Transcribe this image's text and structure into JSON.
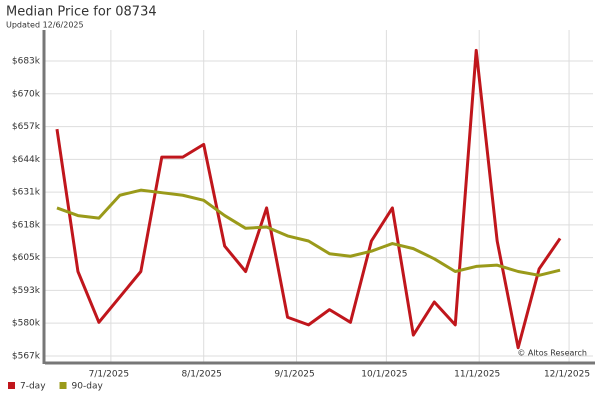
{
  "chart_data": {
    "type": "line",
    "title": "Median Price for 08734",
    "subtitle": "Updated 12/6/2025",
    "annotation": "© Altos Research",
    "x": [
      "2025-06-13",
      "2025-06-20",
      "2025-06-27",
      "2025-07-04",
      "2025-07-11",
      "2025-07-18",
      "2025-07-25",
      "2025-08-01",
      "2025-08-08",
      "2025-08-15",
      "2025-08-22",
      "2025-08-29",
      "2025-09-05",
      "2025-09-12",
      "2025-09-19",
      "2025-09-26",
      "2025-10-03",
      "2025-10-10",
      "2025-10-17",
      "2025-10-24",
      "2025-10-31",
      "2025-11-07",
      "2025-11-14",
      "2025-11-21",
      "2025-11-28"
    ],
    "series": [
      {
        "name": "7-day",
        "color": "#c0161c",
        "values": [
          656000,
          600000,
          580000,
          590000,
          600000,
          645000,
          645000,
          650000,
          610000,
          600000,
          625000,
          582000,
          579000,
          585000,
          580000,
          612000,
          625000,
          575000,
          588000,
          579000,
          687000,
          612000,
          570000,
          601000,
          613000
        ]
      },
      {
        "name": "90-day",
        "color": "#9a9a1a",
        "values": [
          625000,
          622000,
          621000,
          630000,
          632000,
          631000,
          630000,
          628000,
          622000,
          617000,
          617500,
          614000,
          612000,
          607000,
          606000,
          608000,
          611000,
          609000,
          605000,
          600000,
          602000,
          602500,
          600000,
          598500,
          600500
        ]
      }
    ],
    "xlim": [
      "2025-06-09",
      "2025-12-09"
    ],
    "xticks": [
      {
        "value": "2025-07-01",
        "label": "7/1/2025"
      },
      {
        "value": "2025-08-01",
        "label": "8/1/2025"
      },
      {
        "value": "2025-09-01",
        "label": "9/1/2025"
      },
      {
        "value": "2025-10-01",
        "label": "10/1/2025"
      },
      {
        "value": "2025-11-01",
        "label": "11/1/2025"
      },
      {
        "value": "2025-12-01",
        "label": "12/1/2025"
      }
    ],
    "ylim": [
      564400,
      695000
    ],
    "yticks": [
      {
        "value": 566780,
        "label": "$567k"
      },
      {
        "value": 579670,
        "label": "$580k"
      },
      {
        "value": 592560,
        "label": "$593k"
      },
      {
        "value": 605450,
        "label": "$605k"
      },
      {
        "value": 618340,
        "label": "$618k"
      },
      {
        "value": 631230,
        "label": "$631k"
      },
      {
        "value": 644120,
        "label": "$644k"
      },
      {
        "value": 657010,
        "label": "$657k"
      },
      {
        "value": 669900,
        "label": "$670k"
      },
      {
        "value": 682790,
        "label": "$683k"
      }
    ],
    "grid": true,
    "legend": "bottom-left"
  }
}
